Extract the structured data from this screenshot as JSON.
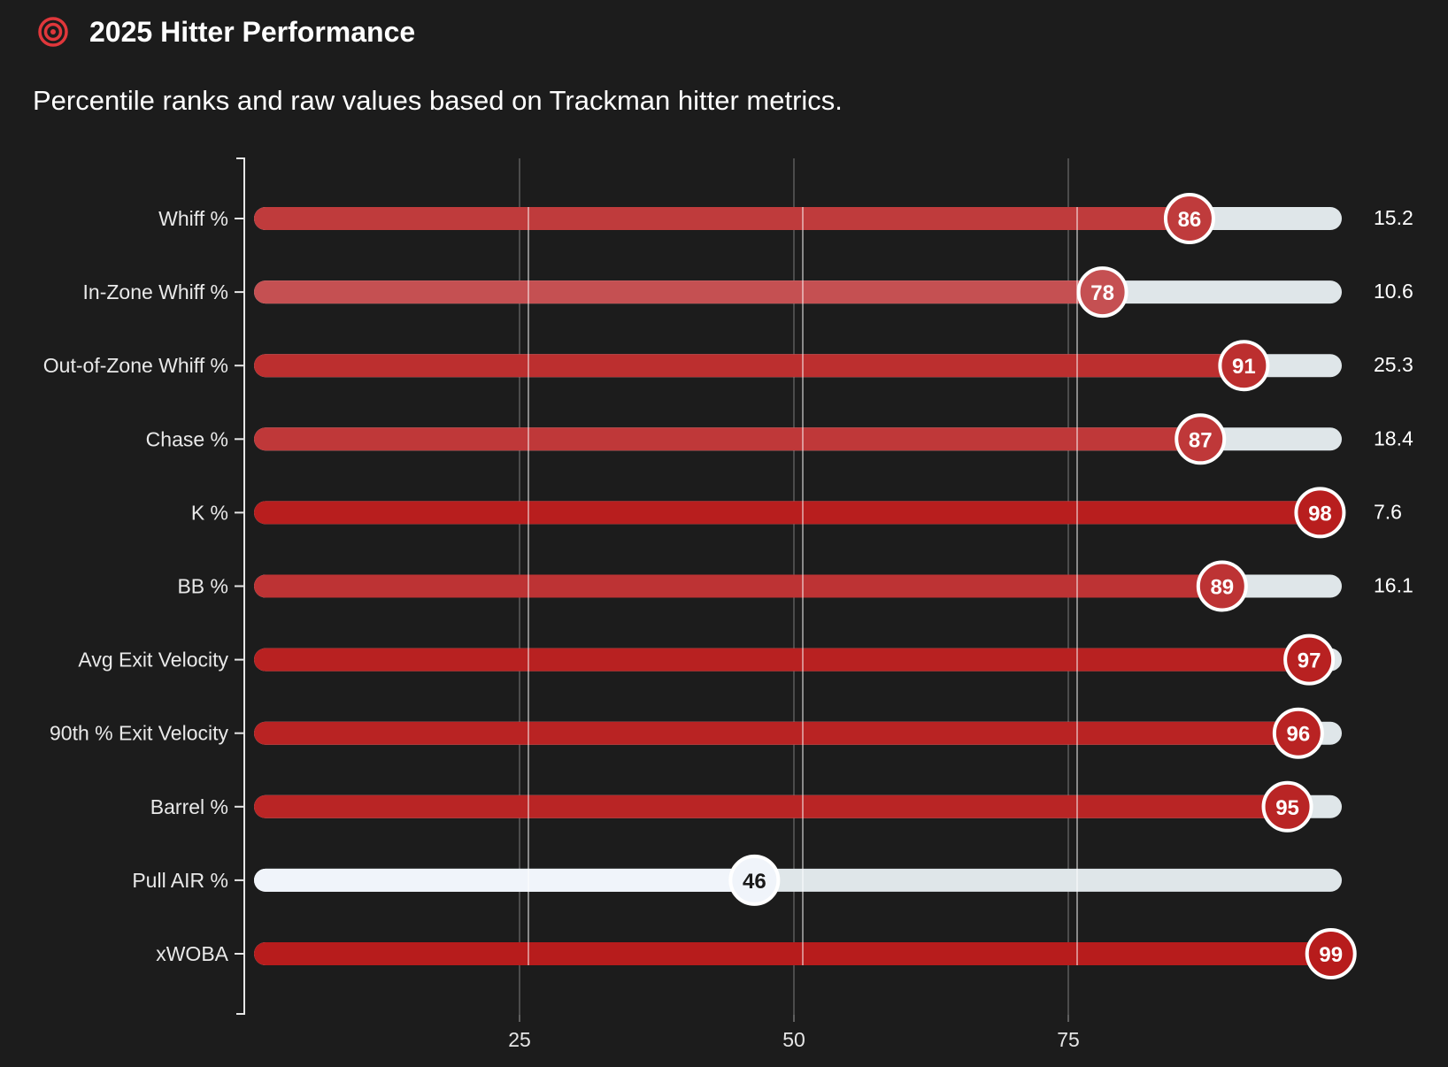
{
  "header": {
    "icon": "target-icon",
    "title": "2025 Hitter Performance",
    "subtitle": "Percentile ranks and raw values based on Trackman hitter metrics."
  },
  "colors": {
    "background": "#1c1c1c",
    "track": "#dfe6e9",
    "high": "#b71c1c",
    "low": "#f0f4fa",
    "icon": "#e0373b"
  },
  "chart_data": {
    "type": "bar",
    "orientation": "horizontal",
    "xlim": [
      0,
      100
    ],
    "xticks": [
      25,
      50,
      75
    ],
    "grid": true,
    "categories": [
      "Whiff %",
      "In-Zone Whiff %",
      "Out-of-Zone Whiff %",
      "Chase %",
      "K %",
      "BB %",
      "Avg Exit Velocity",
      "90th % Exit Velocity",
      "Barrel %",
      "Pull AIR %",
      "xWOBA"
    ],
    "series": [
      {
        "values": [
          86,
          78,
          91,
          87,
          98,
          89,
          97,
          96,
          95,
          46,
          99
        ]
      }
    ],
    "raw_values": [
      "15.2",
      "10.6",
      "25.3",
      "18.4",
      "7.6",
      "16.1",
      "",
      "",
      "",
      "",
      ""
    ]
  }
}
